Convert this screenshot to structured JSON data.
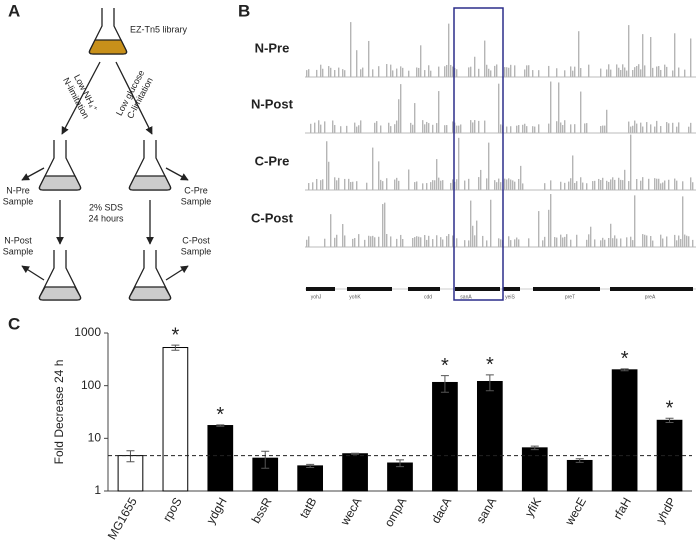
{
  "panels": {
    "a": "A",
    "b": "B",
    "c": "C"
  },
  "diagram": {
    "library": "EZ-Tn5 library",
    "left_condition": [
      "Low NH₄⁺",
      "N-limitation"
    ],
    "right_condition": [
      "Low glucose",
      "C-limitation"
    ],
    "n_pre": [
      "N-Pre",
      "Sample"
    ],
    "c_pre": [
      "C-Pre",
      "Sample"
    ],
    "treatment": [
      "2% SDS",
      "24 hours"
    ],
    "n_post": [
      "N-Post",
      "Sample"
    ],
    "c_post": [
      "C-Post",
      "Sample"
    ]
  },
  "tracks": {
    "labels": [
      "N-Pre",
      "N-Post",
      "C-Pre",
      "C-Post"
    ],
    "genes": [
      "yohJ",
      "yohK",
      "cdd",
      "sanA",
      "yeiS",
      "preT",
      "preA"
    ]
  },
  "chart_data": {
    "type": "bar",
    "y_label": "Fold Decrease 24 h",
    "categories": [
      "MG1655",
      "rpoS",
      "ydgH",
      "bssR",
      "tatB",
      "wecA",
      "ompA",
      "dacA",
      "sanA",
      "yfiK",
      "wecE",
      "rfaH",
      "yhdP"
    ],
    "values": [
      4.7,
      530,
      17.5,
      4.2,
      3.0,
      5.1,
      3.4,
      115,
      120,
      6.6,
      3.8,
      200,
      22
    ],
    "errors": [
      1.1,
      60,
      0.5,
      1.5,
      0.2,
      0.1,
      0.5,
      40,
      40,
      0.5,
      0.3,
      8,
      2
    ],
    "significance": [
      null,
      "*",
      "*",
      null,
      null,
      null,
      null,
      "*",
      "*",
      null,
      null,
      "*",
      "*"
    ],
    "colors": [
      "#ffffff",
      "#ffffff",
      "#000000",
      "#000000",
      "#000000",
      "#000000",
      "#000000",
      "#000000",
      "#000000",
      "#000000",
      "#000000",
      "#000000",
      "#000000"
    ],
    "reference_line": 4.7,
    "log_scale": true,
    "ylim": [
      1,
      1000
    ],
    "yticks": [
      1,
      10,
      100,
      1000
    ]
  }
}
